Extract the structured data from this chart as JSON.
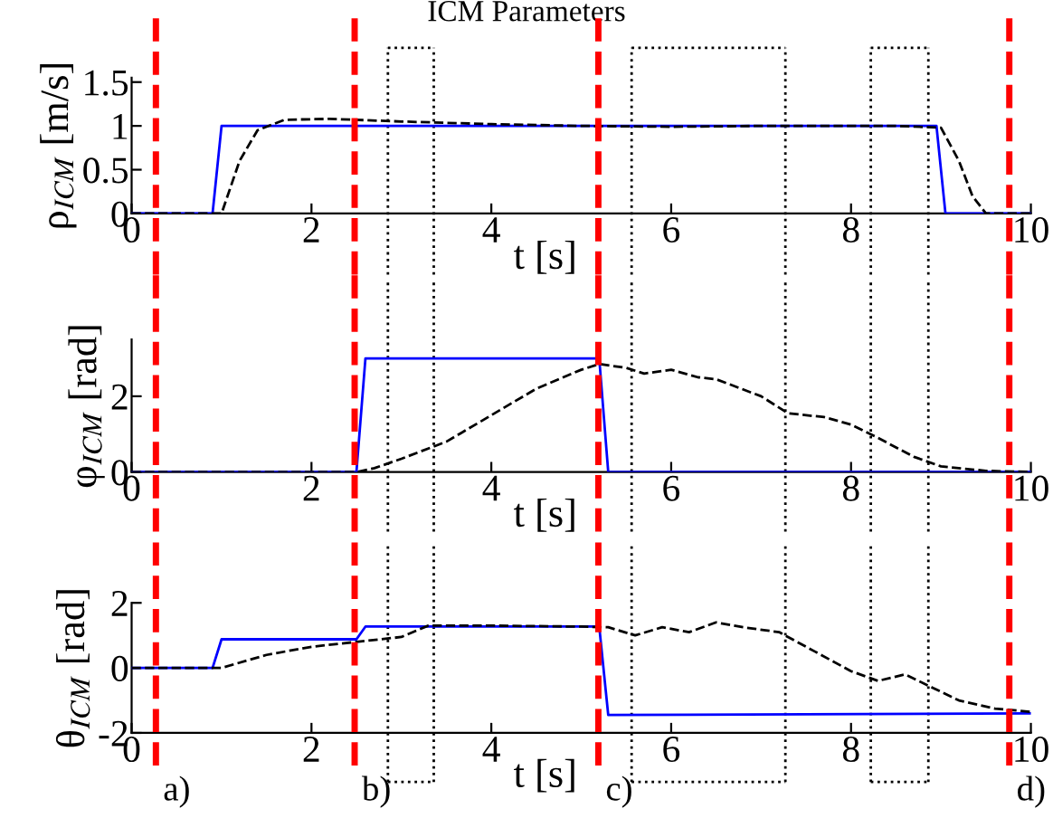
{
  "chart_data": [
    {
      "type": "line",
      "title": "ICM Parameters",
      "xlabel": "t [s]",
      "ylabel": "ρ$_{ICM}$ [m/s]",
      "xlim": [
        0,
        10
      ],
      "xticks": [
        0,
        2,
        4,
        6,
        8,
        10
      ],
      "ylim": [
        0,
        1.55
      ],
      "yticks": [
        0,
        0.5,
        1,
        1.5
      ],
      "grid": false,
      "legend": false,
      "series": [
        {
          "color": "#0000ff",
          "line_style": "solid",
          "x": [
            0,
            0.9,
            1.0,
            8.95,
            9.05,
            10
          ],
          "values": [
            0,
            0,
            1,
            1,
            0,
            0
          ]
        },
        {
          "color": "#000000",
          "line_style": "dashed",
          "x": [
            0,
            1.0,
            1.2,
            1.4,
            1.7,
            2.2,
            3,
            4,
            5,
            6,
            7,
            8.5,
            9.0,
            9.2,
            9.35,
            9.5,
            10
          ],
          "values": [
            0,
            0,
            0.6,
            0.95,
            1.07,
            1.08,
            1.05,
            1.02,
            1.0,
            0.99,
            1.0,
            1.0,
            0.98,
            0.6,
            0.2,
            0,
            0
          ]
        }
      ],
      "ref_lines": [
        {
          "axis": "x",
          "value": 0.27,
          "color": "#ff0000",
          "line_style": "dashed"
        },
        {
          "axis": "x",
          "value": 2.48,
          "color": "#ff0000",
          "line_style": "dashed"
        },
        {
          "axis": "x",
          "value": 5.19,
          "color": "#ff0000",
          "line_style": "dashed"
        },
        {
          "axis": "x",
          "value": 9.76,
          "color": "#ff0000",
          "line_style": "dashed"
        },
        {
          "axis": "x",
          "value": 2.85,
          "color": "#000000",
          "line_style": "dotted"
        },
        {
          "axis": "x",
          "value": 3.36,
          "color": "#000000",
          "line_style": "dotted"
        },
        {
          "axis": "x",
          "value": 5.56,
          "color": "#000000",
          "line_style": "dotted"
        },
        {
          "axis": "x",
          "value": 7.27,
          "color": "#000000",
          "line_style": "dotted"
        },
        {
          "axis": "x",
          "value": 8.22,
          "color": "#000000",
          "line_style": "dotted"
        },
        {
          "axis": "x",
          "value": 8.86,
          "color": "#000000",
          "line_style": "dotted"
        }
      ]
    },
    {
      "type": "line",
      "xlabel": "t [s]",
      "ylabel": "φ$_{ICM}$ [rad]",
      "xlim": [
        0,
        10
      ],
      "xticks": [
        0,
        2,
        4,
        6,
        8,
        10
      ],
      "ylim": [
        0,
        3.5
      ],
      "yticks": [
        0,
        2
      ],
      "grid": false,
      "legend": false,
      "series": [
        {
          "color": "#0000ff",
          "line_style": "solid",
          "x": [
            0,
            2.5,
            2.6,
            5.2,
            5.3,
            10
          ],
          "values": [
            0,
            0,
            3.0,
            3.0,
            0,
            0
          ]
        },
        {
          "color": "#000000",
          "line_style": "dashed",
          "x": [
            0,
            2.5,
            2.7,
            3.0,
            3.5,
            4.0,
            4.5,
            5.0,
            5.2,
            5.5,
            5.7,
            6.0,
            6.3,
            6.5,
            7.0,
            7.3,
            7.7,
            8.0,
            8.3,
            8.7,
            9.0,
            9.5,
            10
          ],
          "values": [
            0,
            0,
            0.1,
            0.35,
            0.8,
            1.5,
            2.2,
            2.7,
            2.85,
            2.75,
            2.6,
            2.7,
            2.5,
            2.45,
            2.0,
            1.55,
            1.45,
            1.25,
            0.9,
            0.4,
            0.15,
            0.03,
            0
          ]
        }
      ],
      "ref_lines": [
        {
          "axis": "x",
          "value": 0.27,
          "color": "#ff0000",
          "line_style": "dashed"
        },
        {
          "axis": "x",
          "value": 2.48,
          "color": "#ff0000",
          "line_style": "dashed"
        },
        {
          "axis": "x",
          "value": 5.19,
          "color": "#ff0000",
          "line_style": "dashed"
        },
        {
          "axis": "x",
          "value": 9.76,
          "color": "#ff0000",
          "line_style": "dashed"
        },
        {
          "axis": "x",
          "value": 2.85,
          "color": "#000000",
          "line_style": "dotted"
        },
        {
          "axis": "x",
          "value": 3.36,
          "color": "#000000",
          "line_style": "dotted"
        },
        {
          "axis": "x",
          "value": 5.56,
          "color": "#000000",
          "line_style": "dotted"
        },
        {
          "axis": "x",
          "value": 7.27,
          "color": "#000000",
          "line_style": "dotted"
        },
        {
          "axis": "x",
          "value": 8.22,
          "color": "#000000",
          "line_style": "dotted"
        },
        {
          "axis": "x",
          "value": 8.86,
          "color": "#000000",
          "line_style": "dotted"
        }
      ]
    },
    {
      "type": "line",
      "xlabel": "t [s]",
      "ylabel": "θ$_{ICM}$ [rad]",
      "xlim": [
        0,
        10
      ],
      "xticks": [
        0,
        2,
        4,
        6,
        8,
        10
      ],
      "ylim": [
        -2,
        2
      ],
      "yticks": [
        -2,
        0,
        2
      ],
      "grid": false,
      "legend": false,
      "series": [
        {
          "color": "#0000ff",
          "line_style": "solid",
          "x": [
            0,
            0.9,
            1.0,
            2.5,
            2.6,
            5.2,
            5.3,
            10
          ],
          "values": [
            0,
            0,
            0.88,
            0.88,
            1.27,
            1.27,
            -1.45,
            -1.4
          ]
        },
        {
          "color": "#000000",
          "line_style": "dashed",
          "x": [
            0,
            1.0,
            1.5,
            2,
            2.5,
            3,
            3.3,
            4,
            5,
            5.3,
            5.6,
            5.9,
            6.2,
            6.5,
            6.8,
            7.2,
            7.6,
            8.0,
            8.3,
            8.6,
            8.9,
            9.2,
            9.6,
            10
          ],
          "values": [
            0,
            0,
            0.4,
            0.65,
            0.8,
            0.95,
            1.3,
            1.3,
            1.27,
            1.25,
            1.0,
            1.25,
            1.1,
            1.4,
            1.25,
            1.1,
            0.5,
            -0.1,
            -0.4,
            -0.2,
            -0.6,
            -1.0,
            -1.25,
            -1.35
          ]
        }
      ],
      "ref_lines": [
        {
          "axis": "x",
          "value": 0.27,
          "label": "a)",
          "color": "#ff0000",
          "line_style": "dashed"
        },
        {
          "axis": "x",
          "value": 2.48,
          "label": "b)",
          "color": "#ff0000",
          "line_style": "dashed"
        },
        {
          "axis": "x",
          "value": 5.19,
          "label": "c)",
          "color": "#ff0000",
          "line_style": "dashed"
        },
        {
          "axis": "x",
          "value": 9.76,
          "label": "d)",
          "color": "#ff0000",
          "line_style": "dashed"
        },
        {
          "axis": "x",
          "value": 2.85,
          "color": "#000000",
          "line_style": "dotted"
        },
        {
          "axis": "x",
          "value": 3.36,
          "color": "#000000",
          "line_style": "dotted"
        },
        {
          "axis": "x",
          "value": 5.56,
          "color": "#000000",
          "line_style": "dotted"
        },
        {
          "axis": "x",
          "value": 7.27,
          "color": "#000000",
          "line_style": "dotted"
        },
        {
          "axis": "x",
          "value": 8.22,
          "color": "#000000",
          "line_style": "dotted"
        },
        {
          "axis": "x",
          "value": 8.86,
          "color": "#000000",
          "line_style": "dotted"
        }
      ]
    }
  ]
}
